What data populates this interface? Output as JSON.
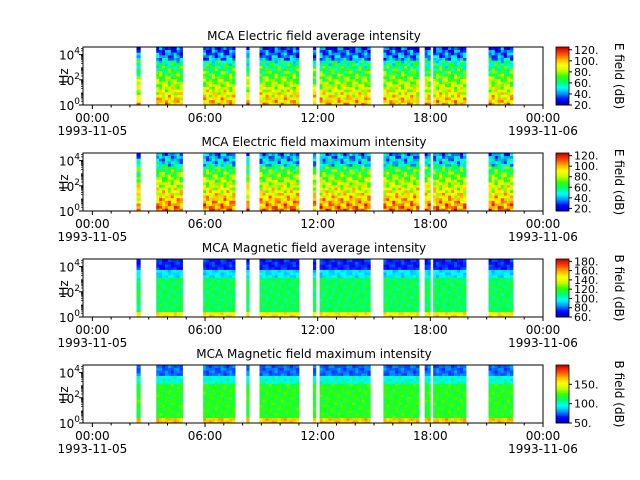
{
  "chart_data": [
    {
      "type": "heatmap",
      "title": "MCA  Electric field average intensity",
      "ylabel": "Hz",
      "yscale": "log",
      "ylim": [
        1,
        40000
      ],
      "ytick_values": [
        1,
        100,
        10000
      ],
      "ytick_labels": [
        "10",
        "10",
        "10"
      ],
      "ytick_exponents": [
        "0",
        "2",
        "4"
      ],
      "xtick_labels": [
        "00:00",
        "06:00",
        "12:00",
        "18:00",
        "00:00"
      ],
      "xtick_dates": [
        "1993-11-05",
        "",
        "",
        "",
        "1993-11-06"
      ],
      "colorbar_label": "E field (dB)",
      "colorbar_range": [
        20,
        125
      ],
      "colorbar_ticks": [
        "20.",
        "40.",
        "60.",
        "80.",
        "100.",
        "120."
      ],
      "colormap": [
        "#0000b4",
        "#0000ff",
        "#0096ff",
        "#00ffff",
        "#00ff6e",
        "#32ff00",
        "#c8ff00",
        "#ffff00",
        "#ffaa00",
        "#ff4000",
        "#c80000"
      ],
      "data_intervals_hours": [
        [
          2.85,
          3.05
        ],
        [
          3.9,
          5.3
        ],
        [
          6.4,
          8.1
        ],
        [
          8.7,
          8.85
        ],
        [
          9.4,
          11.5
        ],
        [
          12.25,
          12.4
        ],
        [
          12.6,
          15.3
        ],
        [
          16.0,
          17.9
        ],
        [
          18.2,
          18.5
        ],
        [
          18.65,
          20.4
        ],
        [
          21.6,
          22.9
        ]
      ]
    },
    {
      "type": "heatmap",
      "title": "MCA  Electric field maximum intensity",
      "ylabel": "Hz",
      "yscale": "log",
      "ylim": [
        1,
        40000
      ],
      "ytick_values": [
        1,
        100,
        10000
      ],
      "ytick_labels": [
        "10",
        "10",
        "10"
      ],
      "ytick_exponents": [
        "0",
        "2",
        "4"
      ],
      "xtick_labels": [
        "00:00",
        "06:00",
        "12:00",
        "18:00",
        "00:00"
      ],
      "xtick_dates": [
        "1993-11-05",
        "",
        "",
        "",
        "1993-11-06"
      ],
      "colorbar_label": "E field (dB)",
      "colorbar_range": [
        15,
        125
      ],
      "colorbar_ticks": [
        "20.",
        "40.",
        "60.",
        "80.",
        "100.",
        "120."
      ],
      "colormap": [
        "#0000b4",
        "#0000ff",
        "#0096ff",
        "#00ffff",
        "#00ff6e",
        "#32ff00",
        "#c8ff00",
        "#ffff00",
        "#ffaa00",
        "#ff4000",
        "#c80000"
      ],
      "data_intervals_hours": [
        [
          2.85,
          3.05
        ],
        [
          3.9,
          5.3
        ],
        [
          6.4,
          8.1
        ],
        [
          8.7,
          8.85
        ],
        [
          9.4,
          11.5
        ],
        [
          12.25,
          12.4
        ],
        [
          12.6,
          15.3
        ],
        [
          16.0,
          17.9
        ],
        [
          18.2,
          18.5
        ],
        [
          18.65,
          20.4
        ],
        [
          21.6,
          22.9
        ]
      ]
    },
    {
      "type": "heatmap",
      "title": "MCA  Magnetic field average intensity",
      "ylabel": "Hz",
      "yscale": "log",
      "ylim": [
        1,
        40000
      ],
      "ytick_values": [
        1,
        100,
        10000
      ],
      "ytick_labels": [
        "10",
        "10",
        "10"
      ],
      "ytick_exponents": [
        "0",
        "2",
        "4"
      ],
      "xtick_labels": [
        "00:00",
        "06:00",
        "12:00",
        "18:00",
        "00:00"
      ],
      "xtick_dates": [
        "1993-11-05",
        "",
        "",
        "",
        "1993-11-06"
      ],
      "colorbar_label": "B field (dB)",
      "colorbar_range": [
        60,
        185
      ],
      "colorbar_ticks": [
        "60.",
        "80.",
        "100.",
        "120.",
        "140.",
        "160.",
        "180."
      ],
      "colormap": [
        "#0000b4",
        "#0000ff",
        "#0096ff",
        "#00ffff",
        "#00ff6e",
        "#32ff00",
        "#c8ff00",
        "#ffff00",
        "#ffaa00",
        "#ff4000",
        "#c80000"
      ],
      "data_intervals_hours": [
        [
          2.85,
          3.05
        ],
        [
          3.9,
          5.3
        ],
        [
          6.4,
          8.1
        ],
        [
          8.7,
          8.85
        ],
        [
          9.4,
          11.5
        ],
        [
          12.25,
          12.4
        ],
        [
          12.6,
          15.3
        ],
        [
          16.0,
          17.9
        ],
        [
          18.2,
          18.5
        ],
        [
          18.65,
          20.4
        ],
        [
          21.6,
          22.9
        ]
      ]
    },
    {
      "type": "heatmap",
      "title": "MCA  Magnetic field maximum intensity",
      "ylabel": "Hz",
      "yscale": "log",
      "ylim": [
        1,
        40000
      ],
      "ytick_values": [
        1,
        100,
        10000
      ],
      "ytick_labels": [
        "10",
        "10",
        "10"
      ],
      "ytick_exponents": [
        "0",
        "2",
        "4"
      ],
      "xtick_labels": [
        "00:00",
        "06:00",
        "12:00",
        "18:00",
        "00:00"
      ],
      "xtick_dates": [
        "1993-11-05",
        "",
        "",
        "",
        "1993-11-06"
      ],
      "colorbar_label": "B field (dB)",
      "colorbar_range": [
        50,
        200
      ],
      "colorbar_ticks": [
        "50.",
        "100.",
        "150."
      ],
      "colormap": [
        "#0000b4",
        "#0000ff",
        "#0096ff",
        "#00ffff",
        "#00ff6e",
        "#32ff00",
        "#c8ff00",
        "#ffff00",
        "#ffaa00",
        "#ff4000",
        "#c80000"
      ],
      "data_intervals_hours": [
        [
          2.85,
          3.05
        ],
        [
          3.9,
          5.3
        ],
        [
          6.4,
          8.1
        ],
        [
          8.7,
          8.85
        ],
        [
          9.4,
          11.5
        ],
        [
          12.25,
          12.4
        ],
        [
          12.6,
          15.3
        ],
        [
          16.0,
          17.9
        ],
        [
          18.2,
          18.5
        ],
        [
          18.65,
          20.4
        ],
        [
          21.6,
          22.9
        ]
      ]
    }
  ]
}
